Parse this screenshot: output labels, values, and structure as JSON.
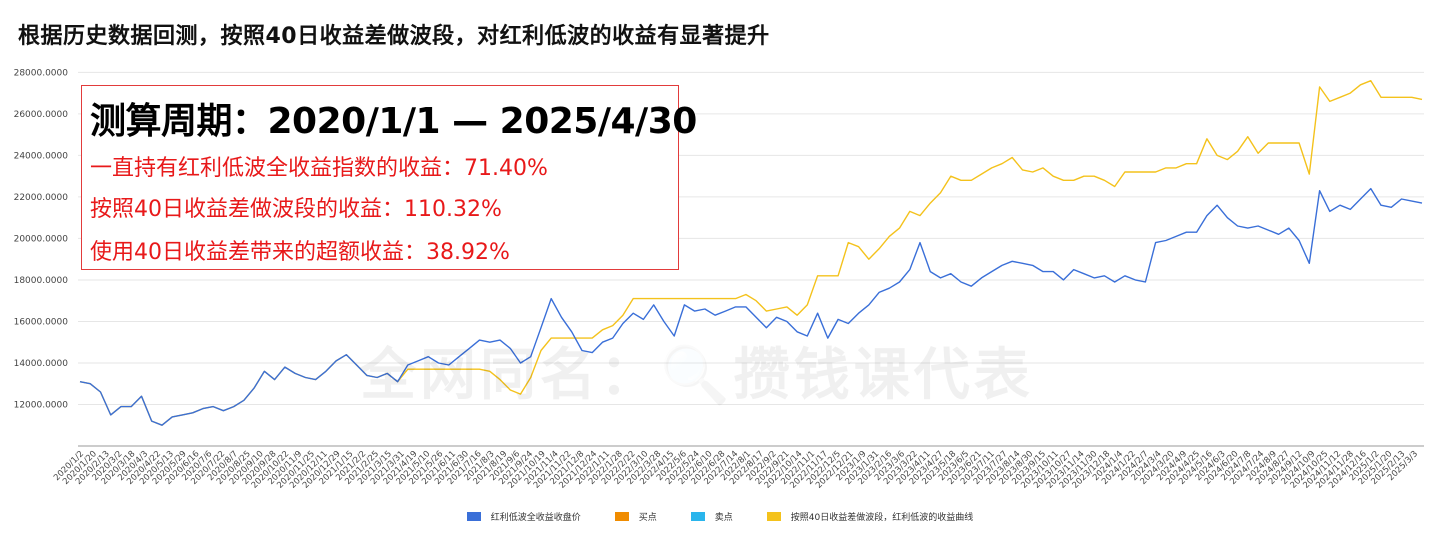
{
  "title": "根据历史数据回测，按照40日收益差做波段，对红利低波的收益有显著提升",
  "info_box": {
    "period": "测算周期：2020/1/1 — 2025/4/30",
    "line1": "一直持有红利低波全收益指数的收益：71.40%",
    "line2": "按照40日收益差做波段的收益：110.32%",
    "line3": "使用40日收益差带来的超额收益：38.92%"
  },
  "watermark": "全网同名：🔍攒钱课代表",
  "colors": {
    "blue": "#3a6fd8",
    "orange": "#f08c00",
    "cyan": "#2ab5ec",
    "yellow": "#f4c21c"
  },
  "chart_data": {
    "type": "line",
    "title": "根据历史数据回测，按照40日收益差做波段，对红利低波的收益有显著提升",
    "xlabel": "",
    "ylabel": "",
    "ylim": [
      10000,
      28500
    ],
    "yticks": [
      "12000.0000",
      "14000.0000",
      "16000.0000",
      "18000.0000",
      "20000.0000",
      "22000.0000",
      "24000.0000",
      "26000.0000",
      "28000.0000"
    ],
    "ytick_values": [
      12000,
      14000,
      16000,
      18000,
      20000,
      22000,
      24000,
      26000,
      28000
    ],
    "xticks": [
      "2020/1/2",
      "2020/1/20",
      "2020/2/13",
      "2020/3/2",
      "2020/3/18",
      "2020/4/3",
      "2020/4/22",
      "2020/5/13",
      "2020/5/29",
      "2020/6/16",
      "2020/7/6",
      "2020/7/22",
      "2020/8/7",
      "2020/8/25",
      "2020/9/10",
      "2020/9/28",
      "2020/10/22",
      "2020/11/9",
      "2020/11/25",
      "2020/12/11",
      "2020/12/29",
      "2021/1/15",
      "2021/2/2",
      "2021/2/25",
      "2021/3/15",
      "2021/3/31",
      "2021/4/19",
      "2021/5/10",
      "2021/5/26",
      "2021/6/11",
      "2021/6/30",
      "2021/7/16",
      "2021/8/3",
      "2021/8/19",
      "2021/9/6",
      "2021/9/24",
      "2021/10/19",
      "2021/11/4",
      "2021/11/22",
      "2021/12/8",
      "2021/12/24",
      "2022/1/11",
      "2022/1/28",
      "2022/2/22",
      "2022/3/10",
      "2022/3/28",
      "2022/4/15",
      "2022/5/6",
      "2022/5/24",
      "2022/6/10",
      "2022/6/28",
      "2022/7/14",
      "2022/8/1",
      "2022/8/17",
      "2022/9/2",
      "2022/9/21",
      "2022/10/14",
      "2022/11/1",
      "2022/11/17",
      "2022/12/5",
      "2022/12/21",
      "2023/1/9",
      "2023/1/31",
      "2023/2/16",
      "2023/3/6",
      "2023/3/22",
      "2023/4/11",
      "2023/4/27",
      "2023/5/18",
      "2023/6/5",
      "2023/6/21",
      "2023/7/11",
      "2023/7/27",
      "2023/8/14",
      "2023/8/30",
      "2023/9/15",
      "2023/10/11",
      "2023/10/27",
      "2023/11/14",
      "2023/11/30",
      "2023/12/18",
      "2024/1/4",
      "2024/1/22",
      "2024/2/7",
      "2024/3/4",
      "2024/3/20",
      "2024/4/9",
      "2024/4/25",
      "2024/5/16",
      "2024/6/3",
      "2024/6/20",
      "2024/7/8",
      "2024/7/24",
      "2024/8/9",
      "2024/8/27",
      "2024/9/12",
      "2024/10/9",
      "2024/10/25",
      "2024/11/12",
      "2024/11/28",
      "2024/12/16",
      "2025/1/2",
      "2025/1/20",
      "2025/2/13",
      "2025/3/3"
    ],
    "legend_position": "bottom",
    "series": [
      {
        "name": "红利低波全收益收盘价",
        "color": "#3a6fd8",
        "values": [
          13100,
          13000,
          12600,
          11500,
          11900,
          11900,
          12400,
          11200,
          11000,
          11400,
          11500,
          11600,
          11800,
          11900,
          11700,
          11900,
          12200,
          12800,
          13600,
          13200,
          13800,
          13500,
          13300,
          13200,
          13600,
          14100,
          14400,
          13900,
          13400,
          13300,
          13500,
          13100,
          13900,
          14100,
          14300,
          14000,
          13900,
          14300,
          14700,
          15100,
          15000,
          15100,
          14700,
          14000,
          14300,
          15700,
          17100,
          16200,
          15500,
          14600,
          14500,
          15000,
          15200,
          15900,
          16400,
          16100,
          16800,
          16000,
          15300,
          16800,
          16500,
          16600,
          16300,
          16500,
          16700,
          16700,
          16200,
          15700,
          16200,
          16000,
          15500,
          15300,
          16400,
          15200,
          16100,
          15900,
          16400,
          16800,
          17400,
          17600,
          17900,
          18500,
          19800,
          18400,
          18100,
          18300,
          17900,
          17700,
          18100,
          18400,
          18700,
          18900,
          18800,
          18700,
          18400,
          18400,
          18000,
          18500,
          18300,
          18100,
          18200,
          17900,
          18200,
          18000,
          17900,
          19800,
          19900,
          20100,
          20300,
          20300,
          21100,
          21600,
          21000,
          20600,
          20500,
          20600,
          20400,
          20200,
          20500,
          19900,
          18800,
          22300,
          21300,
          21600,
          21400,
          21900,
          22400,
          21600,
          21500,
          21900,
          21800,
          21700
        ]
      },
      {
        "name": "买点",
        "color": "#f08c00",
        "values": []
      },
      {
        "name": "卖点",
        "color": "#2ab5ec",
        "values": []
      },
      {
        "name": "按照40日收益差做波段，红利低波的收益曲线",
        "color": "#f4c21c",
        "values": [
          13100,
          13000,
          12600,
          11500,
          11900,
          11900,
          12400,
          11200,
          11000,
          11400,
          11500,
          11600,
          11800,
          11900,
          11700,
          11900,
          12200,
          12800,
          13600,
          13200,
          13800,
          13500,
          13300,
          13200,
          13600,
          14100,
          14400,
          13900,
          13400,
          13300,
          13500,
          13100,
          13700,
          13700,
          13700,
          13700,
          13700,
          13700,
          13700,
          13700,
          13600,
          13200,
          12700,
          12500,
          13300,
          14600,
          15200,
          15200,
          15200,
          15200,
          15200,
          15600,
          15800,
          16300,
          17100,
          17100,
          17100,
          17100,
          17100,
          17100,
          17100,
          17100,
          17100,
          17100,
          17100,
          17300,
          17000,
          16500,
          16600,
          16700,
          16300,
          16800,
          18200,
          18200,
          18200,
          19800,
          19600,
          19000,
          19500,
          20100,
          20500,
          21300,
          21100,
          21700,
          22200,
          23000,
          22800,
          22800,
          23100,
          23400,
          23600,
          23900,
          23300,
          23200,
          23400,
          23000,
          22800,
          22800,
          23000,
          23000,
          22800,
          22500,
          23200,
          23200,
          23200,
          23200,
          23400,
          23400,
          23600,
          23600,
          24800,
          24000,
          23800,
          24200,
          24900,
          24100,
          24600,
          24600,
          24600,
          24600,
          23100,
          27300,
          26600,
          26800,
          27000,
          27400,
          27600,
          26800,
          26800,
          26800,
          26800,
          26700
        ]
      }
    ]
  }
}
